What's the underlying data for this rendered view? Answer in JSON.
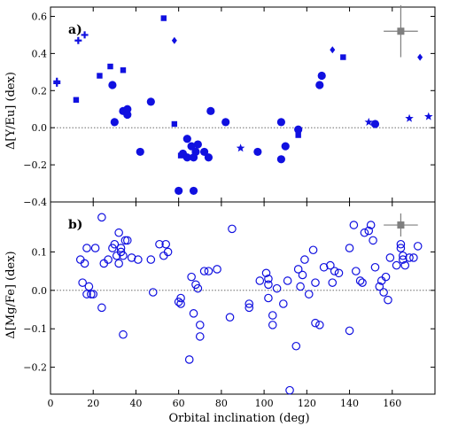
{
  "chart_data": [
    {
      "panel": "top",
      "type": "scatter",
      "panel_label": "a)",
      "ylabel": "Δ[Y/Eu] (dex)",
      "xlim": [
        0,
        180
      ],
      "ylim": [
        -0.4,
        0.65
      ],
      "yticks": [
        -0.4,
        -0.2,
        0.0,
        0.2,
        0.4,
        0.6
      ],
      "ytick_labels": [
        "−0.4",
        "−0.2",
        "0.0",
        "0.2",
        "0.4",
        "0.6"
      ],
      "reference_line_y": 0,
      "colors": {
        "series": "#1010e0",
        "error": "#7f7f7f"
      },
      "series": [
        {
          "marker": "circle",
          "points": [
            [
              29,
              0.23
            ],
            [
              30,
              0.03
            ],
            [
              34,
              0.09
            ],
            [
              36,
              0.1
            ],
            [
              36,
              0.07
            ],
            [
              42,
              -0.13
            ],
            [
              47,
              0.14
            ],
            [
              60,
              -0.34
            ],
            [
              62,
              -0.14
            ],
            [
              64,
              -0.06
            ],
            [
              64,
              -0.16
            ],
            [
              66,
              -0.1
            ],
            [
              67,
              -0.34
            ],
            [
              67,
              -0.16
            ],
            [
              68,
              -0.13
            ],
            [
              69,
              -0.09
            ],
            [
              72,
              -0.13
            ],
            [
              74,
              -0.16
            ],
            [
              75,
              0.09
            ],
            [
              82,
              0.03
            ],
            [
              97,
              -0.13
            ],
            [
              108,
              0.03
            ],
            [
              108,
              -0.17
            ],
            [
              110,
              -0.1
            ],
            [
              116,
              -0.01
            ],
            [
              126,
              0.23
            ],
            [
              127,
              0.28
            ],
            [
              152,
              0.02
            ]
          ]
        },
        {
          "marker": "square",
          "points": [
            [
              12,
              0.15
            ],
            [
              23,
              0.28
            ],
            [
              28,
              0.33
            ],
            [
              34,
              0.31
            ],
            [
              53,
              0.59
            ],
            [
              58,
              0.02
            ],
            [
              61,
              -0.15
            ],
            [
              116,
              -0.04
            ],
            [
              137,
              0.38
            ]
          ]
        },
        {
          "marker": "diamond",
          "points": [
            [
              58,
              0.47
            ],
            [
              132,
              0.42
            ],
            [
              173,
              0.38
            ]
          ]
        },
        {
          "marker": "plus",
          "points": [
            [
              3,
              0.25
            ],
            [
              3,
              0.24
            ],
            [
              13,
              0.47
            ],
            [
              16,
              0.5
            ]
          ]
        },
        {
          "marker": "star",
          "points": [
            [
              89,
              -0.11
            ],
            [
              149,
              0.03
            ],
            [
              168,
              0.05
            ],
            [
              177,
              0.06
            ]
          ]
        }
      ],
      "typical_error": {
        "x": 164,
        "y": 0.52,
        "xerr": 8,
        "yerr": 0.14
      }
    },
    {
      "panel": "bottom",
      "type": "scatter",
      "panel_label": "b)",
      "ylabel": "Δ[Mg/Fe] (dex)",
      "xlabel": "Orbital inclination (deg)",
      "xlim": [
        0,
        180
      ],
      "ylim": [
        -0.27,
        0.23
      ],
      "xticks": [
        0,
        20,
        40,
        60,
        80,
        100,
        120,
        140,
        160
      ],
      "xtick_labels": [
        "0",
        "20",
        "40",
        "60",
        "80",
        "100",
        "120",
        "140",
        "160"
      ],
      "yticks": [
        -0.2,
        -0.1,
        0.0,
        0.1
      ],
      "ytick_labels": [
        "−0.2",
        "−0.1",
        "0.0",
        "0.1"
      ],
      "reference_line_y": 0,
      "colors": {
        "series": "#1010e0",
        "error": "#7f7f7f"
      },
      "series": [
        {
          "marker": "open-circle",
          "points": [
            [
              14,
              0.08
            ],
            [
              15,
              0.02
            ],
            [
              16,
              0.07
            ],
            [
              17,
              -0.01
            ],
            [
              17,
              0.11
            ],
            [
              18,
              0.01
            ],
            [
              19,
              -0.01
            ],
            [
              20,
              -0.01
            ],
            [
              21,
              0.11
            ],
            [
              24,
              0.19
            ],
            [
              24,
              -0.045
            ],
            [
              25,
              0.07
            ],
            [
              27,
              0.08
            ],
            [
              29,
              0.11
            ],
            [
              30,
              0.12
            ],
            [
              31,
              0.09
            ],
            [
              32,
              0.07
            ],
            [
              32,
              0.15
            ],
            [
              33,
              0.11
            ],
            [
              33,
              0.1
            ],
            [
              34,
              0.09
            ],
            [
              34,
              -0.115
            ],
            [
              35,
              0.13
            ],
            [
              36,
              0.13
            ],
            [
              38,
              0.085
            ],
            [
              41,
              0.08
            ],
            [
              47,
              0.08
            ],
            [
              48,
              -0.005
            ],
            [
              51,
              0.12
            ],
            [
              53,
              0.09
            ],
            [
              54,
              0.12
            ],
            [
              55,
              0.1
            ],
            [
              60,
              -0.03
            ],
            [
              61,
              -0.02
            ],
            [
              61,
              -0.035
            ],
            [
              65,
              -0.18
            ],
            [
              66,
              0.035
            ],
            [
              67,
              -0.06
            ],
            [
              68,
              0.015
            ],
            [
              69,
              0.005
            ],
            [
              70,
              -0.09
            ],
            [
              70,
              -0.12
            ],
            [
              72,
              0.05
            ],
            [
              74,
              0.05
            ],
            [
              78,
              0.055
            ],
            [
              84,
              -0.07
            ],
            [
              85,
              0.16
            ],
            [
              93,
              -0.035
            ],
            [
              93,
              -0.045
            ],
            [
              98,
              0.025
            ],
            [
              101,
              0.045
            ],
            [
              102,
              0.03
            ],
            [
              102,
              0.015
            ],
            [
              102,
              -0.02
            ],
            [
              104,
              -0.065
            ],
            [
              104,
              -0.09
            ],
            [
              106,
              0.005
            ],
            [
              109,
              -0.035
            ],
            [
              111,
              0.025
            ],
            [
              112,
              -0.26
            ],
            [
              115,
              -0.145
            ],
            [
              116,
              0.055
            ],
            [
              117,
              0.01
            ],
            [
              118,
              0.04
            ],
            [
              119,
              0.08
            ],
            [
              121,
              -0.01
            ],
            [
              123,
              0.105
            ],
            [
              124,
              0.02
            ],
            [
              124,
              -0.085
            ],
            [
              126,
              -0.09
            ],
            [
              128,
              0.06
            ],
            [
              131,
              0.065
            ],
            [
              132,
              0.02
            ],
            [
              133,
              0.05
            ],
            [
              135,
              0.045
            ],
            [
              140,
              0.11
            ],
            [
              140,
              -0.105
            ],
            [
              142,
              0.17
            ],
            [
              143,
              0.05
            ],
            [
              145,
              0.025
            ],
            [
              146,
              0.02
            ],
            [
              147,
              0.15
            ],
            [
              149,
              0.155
            ],
            [
              150,
              0.17
            ],
            [
              151,
              0.13
            ],
            [
              152,
              0.06
            ],
            [
              154,
              0.01
            ],
            [
              155,
              0.025
            ],
            [
              156,
              -0.005
            ],
            [
              157,
              0.035
            ],
            [
              158,
              -0.025
            ],
            [
              159,
              0.085
            ],
            [
              162,
              0.065
            ],
            [
              164,
              0.12
            ],
            [
              164,
              0.11
            ],
            [
              165,
              0.08
            ],
            [
              165,
              0.09
            ],
            [
              166,
              0.065
            ],
            [
              168,
              0.085
            ],
            [
              170,
              0.085
            ],
            [
              172,
              0.115
            ]
          ]
        }
      ],
      "typical_error": {
        "x": 164,
        "y": 0.17,
        "xerr": 8,
        "yerr": 0.03
      }
    }
  ]
}
